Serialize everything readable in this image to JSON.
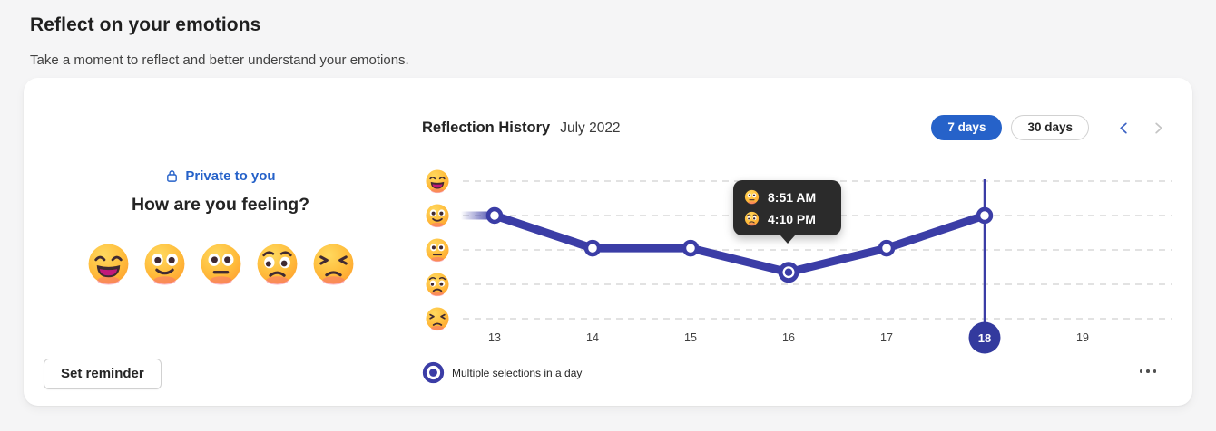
{
  "page": {
    "title": "Reflect on your emotions",
    "subtitle": "Take a moment to reflect and better understand your emotions."
  },
  "panel": {
    "privacy_label": "Private to you",
    "privacy_icon": "lock-icon",
    "question": "How are you feeling?",
    "mood_options": [
      {
        "name": "very-happy",
        "icon": "emoji-very-happy-icon"
      },
      {
        "name": "happy",
        "icon": "emoji-happy-icon"
      },
      {
        "name": "neutral",
        "icon": "emoji-neutral-icon"
      },
      {
        "name": "worried",
        "icon": "emoji-worried-icon"
      },
      {
        "name": "frustrated",
        "icon": "emoji-frustrated-icon"
      }
    ],
    "reminder_button": "Set reminder"
  },
  "history": {
    "title": "Reflection History",
    "period": "July 2022",
    "range_buttons": [
      {
        "label": "7 days",
        "selected": true
      },
      {
        "label": "30 days",
        "selected": false
      }
    ],
    "prev_enabled": true,
    "next_enabled": false,
    "legend_label": "Multiple selections in a day",
    "legend_icon": "multiple-selections-bullseye-icon",
    "more_icon": "more-options-ellipsis-icon",
    "tooltip": {
      "day": 16,
      "entries": [
        {
          "mood": "neutral",
          "time": "8:51 AM"
        },
        {
          "mood": "worried",
          "time": "4:10 PM"
        }
      ]
    }
  },
  "chart_data": {
    "type": "line",
    "title": "Reflection History",
    "month": "July 2022",
    "x_days": [
      13,
      14,
      15,
      16,
      17,
      18,
      19
    ],
    "y_scale": {
      "5": "very-happy",
      "4": "happy",
      "3": "neutral",
      "2": "worried",
      "1": "frustrated"
    },
    "points": [
      {
        "day": 13,
        "level": 4
      },
      {
        "day": 14,
        "level": 3.05
      },
      {
        "day": 15,
        "level": 3.05
      },
      {
        "day": 16,
        "level": 2.35,
        "multiple_selections": true
      },
      {
        "day": 17,
        "level": 3.05
      },
      {
        "day": 18,
        "level": 4
      }
    ],
    "selected_day": 18,
    "grid": "dashed-horizontal",
    "legend": "Multiple selections in a day"
  },
  "colors": {
    "accent_blue": "#2662c9",
    "chart_line": "#3b3da6",
    "selected_day_fill": "#333a9e",
    "tooltip_bg": "#2b2b2b",
    "grid_line": "#d9d9d9",
    "axis_text": "#3f3f3f"
  }
}
